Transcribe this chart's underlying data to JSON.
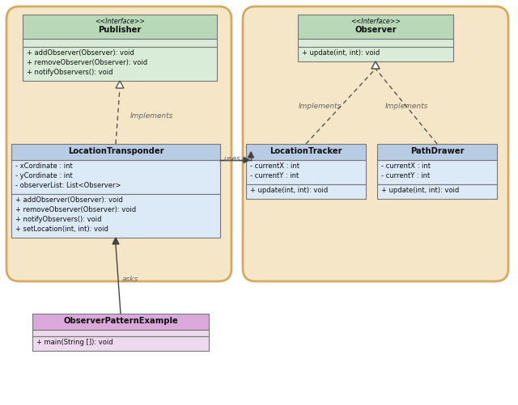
{
  "bg_color": "#ffffff",
  "group_color": "#f5e6c8",
  "group_edge": "#d4aa60",
  "interface_header_color": "#b8d8b8",
  "interface_body_color": "#d8ecd8",
  "class_header_color": "#b8cce4",
  "class_body_color": "#dce9f7",
  "pink_header_color": "#dba8db",
  "pink_body_color": "#edd8ed",
  "publisher": {
    "stereotype": "<<Interface>>",
    "name": "Publisher",
    "attributes": [],
    "methods": [
      "+ addObserver(Observer): void",
      "+ removeObserver(Observer): void",
      "+ notifyObservers(): void"
    ]
  },
  "observer": {
    "stereotype": "<<Interface>>",
    "name": "Observer",
    "attributes": [],
    "methods": [
      "+ update(int, int): void"
    ]
  },
  "location_transponder": {
    "name": "LocationTransponder",
    "attributes": [
      "- xCordinate : int",
      "- yCordinate : int",
      "- observerList: List<Observer>"
    ],
    "methods": [
      "+ addObserver(Observer): void",
      "+ removeObserver(Observer): void",
      "+ notifyObservers(): void",
      "+ setLocation(int, int): void"
    ]
  },
  "location_tracker": {
    "name": "LocationTracker",
    "attributes": [
      "- currentX : int",
      "- currentY : int"
    ],
    "methods": [
      "+ update(int, int): void"
    ]
  },
  "path_drawer": {
    "name": "PathDrawer",
    "attributes": [
      "- currentX : int",
      "- currentY : int"
    ],
    "methods": [
      "+ update(int, int): void"
    ]
  },
  "observer_pattern_example": {
    "name": "ObserverPatternExample",
    "attributes": [],
    "methods": [
      "+ main(String []): void"
    ]
  },
  "figw": 6.4,
  "figh": 5.01,
  "dpi": 100
}
